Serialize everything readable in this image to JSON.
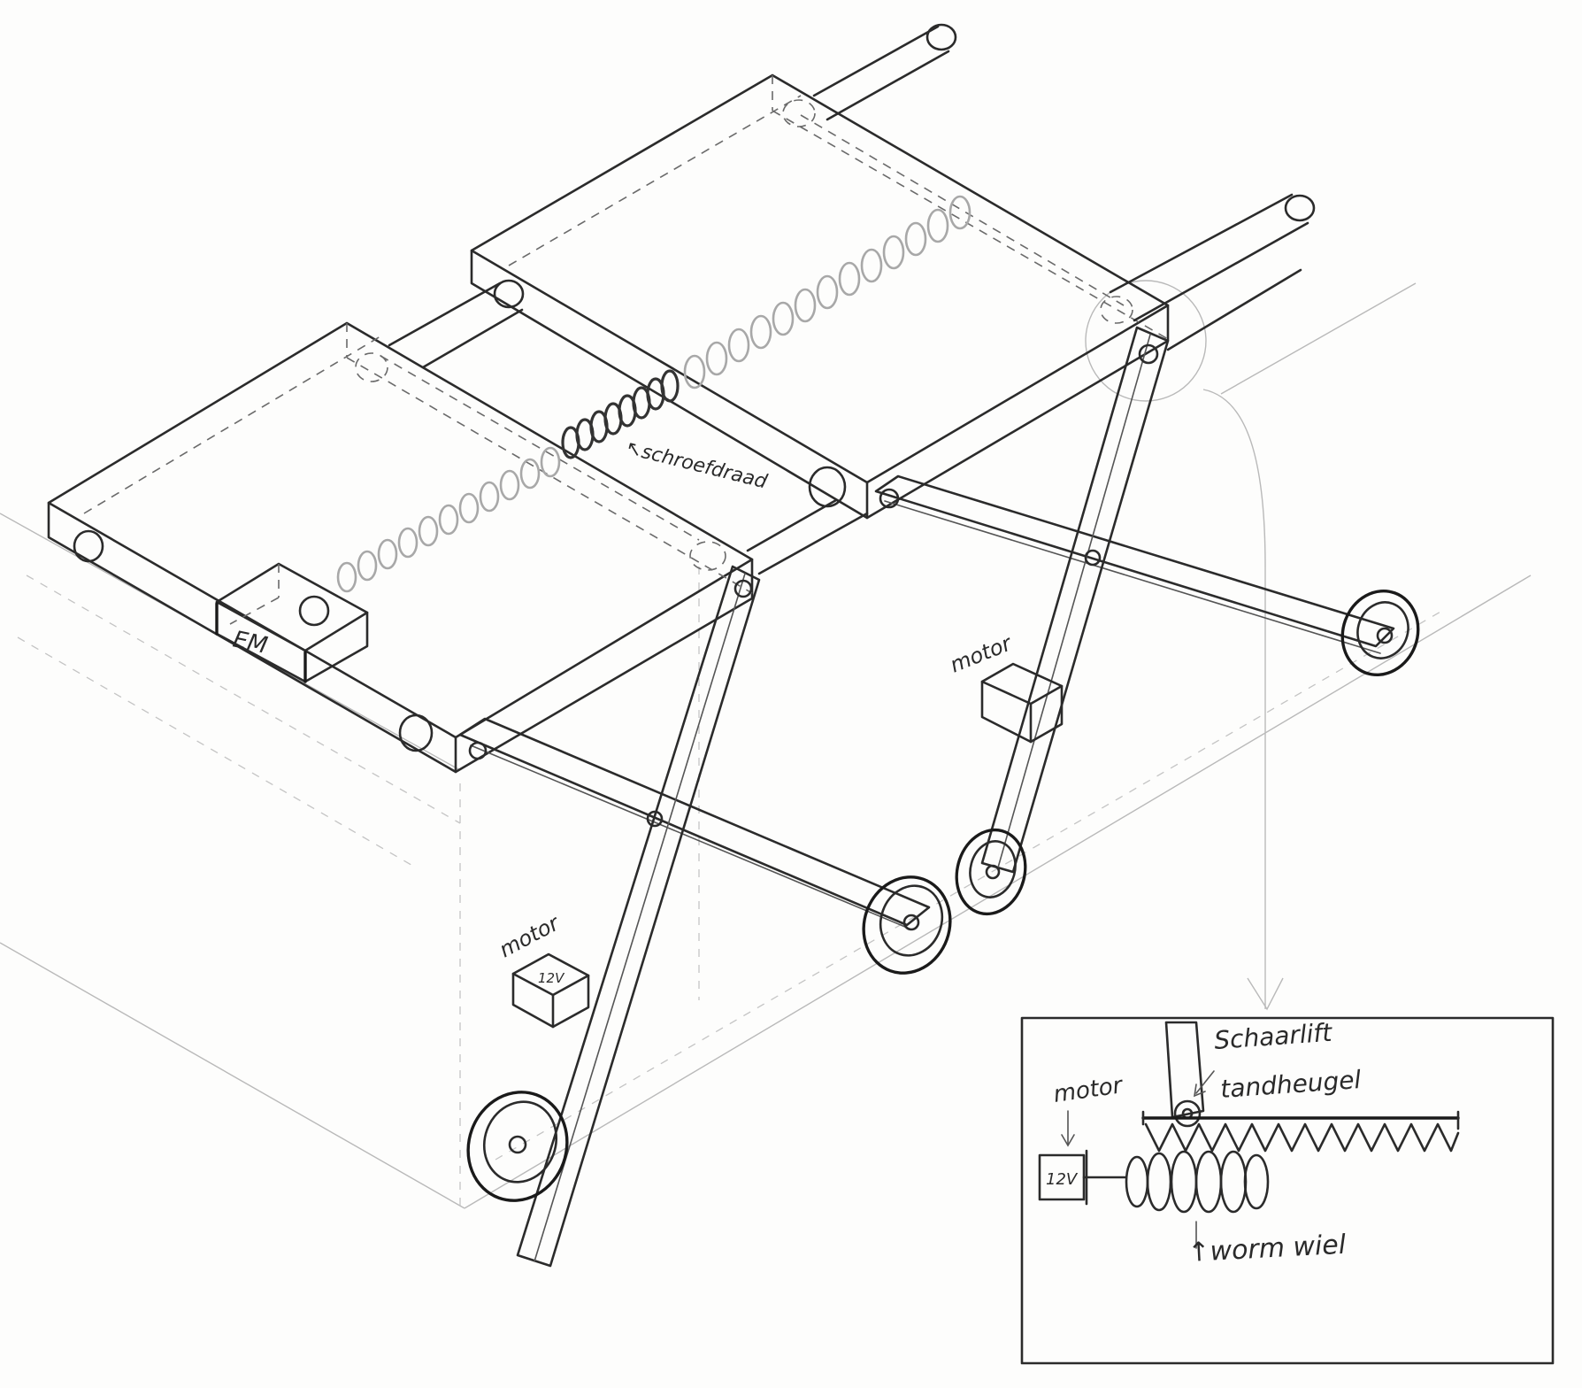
{
  "labels": {
    "em": "EM",
    "screw_thread": "↖schroefdraad",
    "motor_left": "motor",
    "motor_left_voltage": "12V",
    "motor_right": "motor",
    "detail_scissor_lift": "Schaarlift",
    "detail_handle": "tandheugel",
    "detail_motor": "motor",
    "detail_voltage": "12V",
    "detail_worm": "↑worm wiel"
  }
}
